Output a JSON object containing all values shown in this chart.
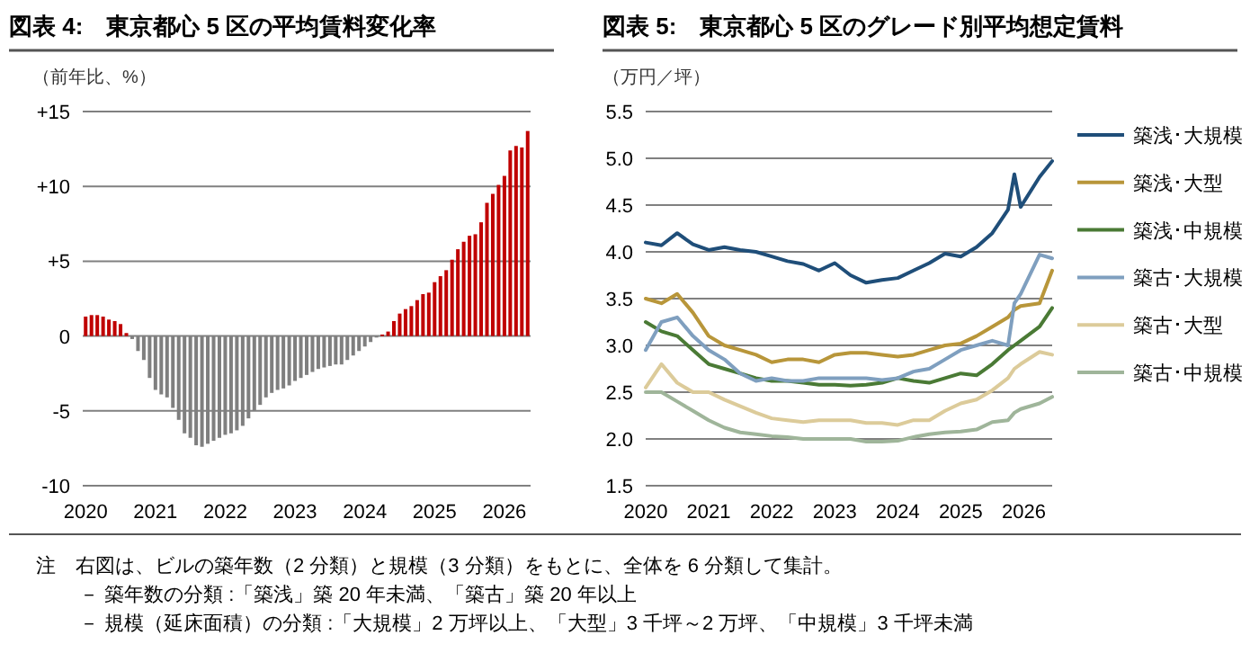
{
  "chart_data": [
    {
      "type": "bar",
      "title": "図表 4:　東京都心 5 区の平均賃料変化率",
      "ylabel": "（前年比、%）",
      "categories": [
        "2020",
        null,
        null,
        null,
        null,
        null,
        null,
        null,
        null,
        null,
        null,
        null,
        "2021",
        null,
        null,
        null,
        null,
        null,
        null,
        null,
        null,
        null,
        null,
        null,
        "2022",
        null,
        null,
        null,
        null,
        null,
        null,
        null,
        null,
        null,
        null,
        null,
        "2023",
        null,
        null,
        null,
        null,
        null,
        null,
        null,
        null,
        null,
        null,
        null,
        "2024",
        null,
        null,
        null,
        null,
        null,
        null,
        null,
        null,
        null,
        null,
        null,
        "2025",
        null,
        null,
        null,
        null,
        null,
        null,
        null,
        null,
        null,
        null,
        null,
        "2026",
        null,
        null,
        null,
        null
      ],
      "values": [
        1.3,
        1.4,
        1.4,
        1.3,
        1.1,
        1.0,
        0.8,
        0.2,
        -0.2,
        -1.0,
        -1.6,
        -2.8,
        -3.6,
        -3.9,
        -4.1,
        -4.8,
        -5.6,
        -6.5,
        -6.8,
        -7.3,
        -7.4,
        -7.2,
        -7.0,
        -6.8,
        -6.6,
        -6.5,
        -6.3,
        -6.0,
        -5.5,
        -5.0,
        -4.6,
        -4.1,
        -3.8,
        -3.6,
        -3.5,
        -3.3,
        -3.0,
        -2.8,
        -2.6,
        -2.4,
        -2.2,
        -2.1,
        -2.0,
        -1.9,
        -1.9,
        -1.6,
        -1.3,
        -1.0,
        -0.7,
        -0.4,
        -0.1,
        0.1,
        0.3,
        1.0,
        1.5,
        1.8,
        2.0,
        2.4,
        2.8,
        2.9,
        3.6,
        4.0,
        4.4,
        5.1,
        5.8,
        6.3,
        6.7,
        6.8,
        7.6,
        8.9,
        9.5,
        10.1,
        10.7,
        12.4,
        12.7,
        12.6,
        13.7
      ],
      "colors": [
        "#c00000",
        "#c00000",
        "#c00000",
        "#c00000",
        "#c00000",
        "#c00000",
        "#c00000",
        "#c00000",
        "#7f7f7f",
        "#7f7f7f",
        "#7f7f7f",
        "#7f7f7f",
        "#7f7f7f",
        "#7f7f7f",
        "#7f7f7f",
        "#7f7f7f",
        "#7f7f7f",
        "#7f7f7f",
        "#7f7f7f",
        "#7f7f7f",
        "#7f7f7f",
        "#7f7f7f",
        "#7f7f7f",
        "#7f7f7f",
        "#7f7f7f",
        "#7f7f7f",
        "#7f7f7f",
        "#7f7f7f",
        "#7f7f7f",
        "#7f7f7f",
        "#7f7f7f",
        "#7f7f7f",
        "#7f7f7f",
        "#7f7f7f",
        "#7f7f7f",
        "#7f7f7f",
        "#7f7f7f",
        "#7f7f7f",
        "#7f7f7f",
        "#7f7f7f",
        "#7f7f7f",
        "#7f7f7f",
        "#7f7f7f",
        "#7f7f7f",
        "#7f7f7f",
        "#7f7f7f",
        "#7f7f7f",
        "#7f7f7f",
        "#7f7f7f",
        "#7f7f7f",
        "#7f7f7f",
        "#c00000",
        "#c00000",
        "#c00000",
        "#c00000",
        "#c00000",
        "#c00000",
        "#c00000",
        "#c00000",
        "#c00000",
        "#c00000",
        "#c00000",
        "#c00000",
        "#c00000",
        "#c00000",
        "#c00000",
        "#c00000",
        "#c00000",
        "#c00000",
        "#c00000",
        "#c00000",
        "#c00000",
        "#c00000",
        "#c00000",
        "#c00000",
        "#c00000",
        "#c00000"
      ],
      "ylim": [
        -10,
        15
      ],
      "yticks": [
        {
          "value": 15,
          "label": "+15"
        },
        {
          "value": 10,
          "label": "+10"
        },
        {
          "value": 5,
          "label": "+5"
        },
        0,
        -5,
        -10
      ],
      "grid": "y",
      "legend": false
    },
    {
      "type": "line",
      "title": "図表 5:　東京都心 5 区のグレード別平均想定賃料",
      "ylabel": "（万円／坪）",
      "x": [
        2020,
        2020.25,
        2020.5,
        2020.75,
        2021,
        2021.25,
        2021.5,
        2021.75,
        2022,
        2022.25,
        2022.5,
        2022.75,
        2023,
        2023.25,
        2023.5,
        2023.75,
        2024,
        2024.25,
        2024.5,
        2024.75,
        2025,
        2025.25,
        2025.5,
        2025.75,
        2025.85,
        2025.95,
        2026.25,
        2026.45
      ],
      "xlim": [
        2020,
        2026.45
      ],
      "xticks": [
        2020,
        2021,
        2022,
        2023,
        2024,
        2025,
        2026
      ],
      "ylim": [
        1.5,
        5.5
      ],
      "yticks": [
        {
          "value": 1.5,
          "label": "1.5"
        },
        {
          "value": 2,
          "label": "2.0"
        },
        {
          "value": 2.5,
          "label": "2.5"
        },
        {
          "value": 3,
          "label": "3.0"
        },
        {
          "value": 3.5,
          "label": "3.5"
        },
        {
          "value": 4,
          "label": "4.0"
        },
        {
          "value": 4.5,
          "label": "4.5"
        },
        {
          "value": 5,
          "label": "5.0"
        },
        {
          "value": 5.5,
          "label": "5.5"
        }
      ],
      "grid": "y",
      "legend": "right",
      "line_style": "solid",
      "marker": "none",
      "series": [
        {
          "name": "築浅･大規模",
          "color": "#1f4e79",
          "values": [
            4.1,
            4.07,
            4.2,
            4.08,
            4.02,
            4.05,
            4.02,
            4.0,
            3.95,
            3.9,
            3.87,
            3.8,
            3.88,
            3.75,
            3.67,
            3.7,
            3.72,
            3.8,
            3.88,
            3.98,
            3.95,
            4.05,
            4.2,
            4.45,
            4.83,
            4.48,
            4.8,
            4.97
          ]
        },
        {
          "name": "築浅･大型",
          "color": "#b8963a",
          "values": [
            3.5,
            3.45,
            3.55,
            3.35,
            3.1,
            3.0,
            2.95,
            2.9,
            2.82,
            2.85,
            2.85,
            2.82,
            2.9,
            2.92,
            2.92,
            2.9,
            2.88,
            2.9,
            2.95,
            3.0,
            3.02,
            3.1,
            3.2,
            3.3,
            3.38,
            3.42,
            3.45,
            3.8
          ]
        },
        {
          "name": "築浅･中規模",
          "color": "#4a7a35",
          "values": [
            3.25,
            3.15,
            3.1,
            2.95,
            2.8,
            2.75,
            2.7,
            2.65,
            2.62,
            2.62,
            2.6,
            2.58,
            2.58,
            2.57,
            2.58,
            2.6,
            2.65,
            2.62,
            2.6,
            2.65,
            2.7,
            2.68,
            2.8,
            2.95,
            3.0,
            3.05,
            3.2,
            3.4
          ]
        },
        {
          "name": "築古･大規模",
          "color": "#7f9fbf",
          "values": [
            2.95,
            3.25,
            3.3,
            3.1,
            2.95,
            2.85,
            2.7,
            2.62,
            2.65,
            2.62,
            2.62,
            2.65,
            2.65,
            2.65,
            2.65,
            2.63,
            2.65,
            2.72,
            2.75,
            2.85,
            2.95,
            3.0,
            3.05,
            3.0,
            3.45,
            3.55,
            3.97,
            3.93
          ]
        },
        {
          "name": "築古･大型",
          "color": "#dccb9a",
          "values": [
            2.55,
            2.8,
            2.6,
            2.5,
            2.5,
            2.42,
            2.35,
            2.28,
            2.22,
            2.2,
            2.18,
            2.2,
            2.2,
            2.2,
            2.17,
            2.17,
            2.15,
            2.2,
            2.2,
            2.3,
            2.38,
            2.42,
            2.52,
            2.65,
            2.75,
            2.8,
            2.93,
            2.9
          ]
        },
        {
          "name": "築古･中規模",
          "color": "#9fb59a",
          "values": [
            2.5,
            2.5,
            2.4,
            2.3,
            2.2,
            2.12,
            2.07,
            2.05,
            2.03,
            2.02,
            2.0,
            2.0,
            2.0,
            2.0,
            1.97,
            1.97,
            1.98,
            2.02,
            2.05,
            2.07,
            2.08,
            2.1,
            2.18,
            2.2,
            2.28,
            2.32,
            2.38,
            2.45
          ]
        }
      ],
      "annotations": [
        "注　右図は、ビルの築年数（2 分類）と規模（3 分類）をもとに、全体を 6 分類して集計。",
        "－ 築年数の分類 :「築浅」築 20 年未満、「築古」築 20 年以上",
        "－ 規模（延床面積）の分類 :「大規模」2 万坪以上、「大型」3 千坪～2 万坪、「中規模」3 千坪未満"
      ]
    }
  ]
}
